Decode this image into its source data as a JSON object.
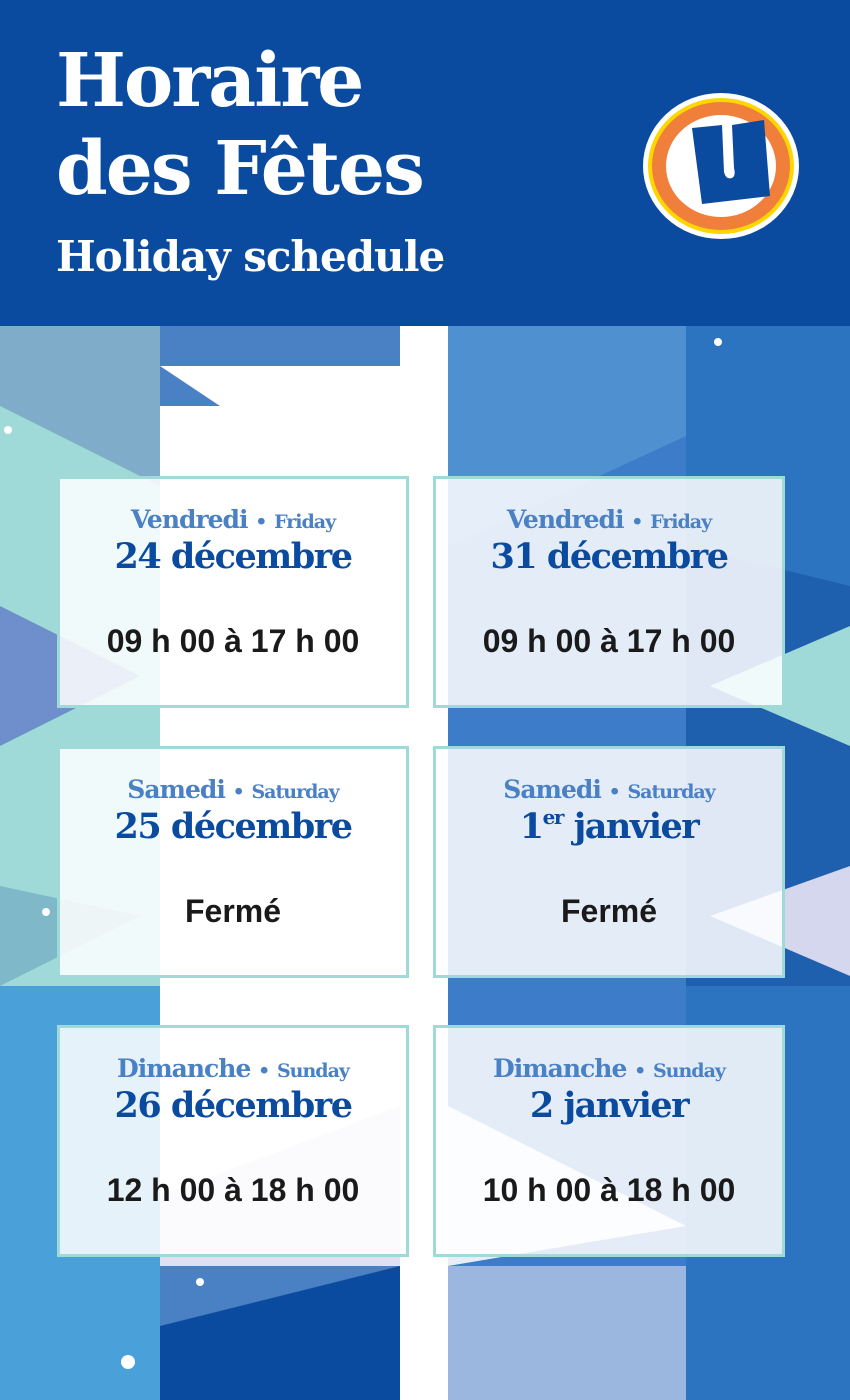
{
  "header": {
    "title_line1": "Horaire",
    "title_line2": "des Fêtes",
    "subtitle": "Holiday schedule",
    "logo_letter": "U"
  },
  "colors": {
    "brand_blue": "#0a4ba0",
    "accent_light_blue": "#4a80c4",
    "card_border": "#9fd9d8",
    "logo_orange": "#f07f3c",
    "logo_yellow": "#ffd600"
  },
  "schedule": [
    {
      "day_fr": "Vendredi",
      "sep": "•",
      "day_en": "Friday",
      "date": "24 décembre",
      "date_sup": "",
      "hours": "09 h 00 à 17 h 00"
    },
    {
      "day_fr": "Vendredi",
      "sep": "•",
      "day_en": "Friday",
      "date": "31 décembre",
      "date_sup": "",
      "hours": "09 h 00 à 17 h 00"
    },
    {
      "day_fr": "Samedi",
      "sep": "•",
      "day_en": "Saturday",
      "date": "25 décembre",
      "date_sup": "",
      "hours": "Fermé"
    },
    {
      "day_fr": "Samedi",
      "sep": "•",
      "day_en": "Saturday",
      "date_pre": "1",
      "date_sup": "er",
      "date": " janvier",
      "hours": "Fermé"
    },
    {
      "day_fr": "Dimanche",
      "sep": "•",
      "day_en": "Sunday",
      "date": "26 décembre",
      "date_sup": "",
      "hours": "12 h 00 à 18 h 00"
    },
    {
      "day_fr": "Dimanche",
      "sep": "•",
      "day_en": "Sunday",
      "date": "2 janvier",
      "date_sup": "",
      "hours": "10 h 00 à 18 h 00"
    }
  ]
}
